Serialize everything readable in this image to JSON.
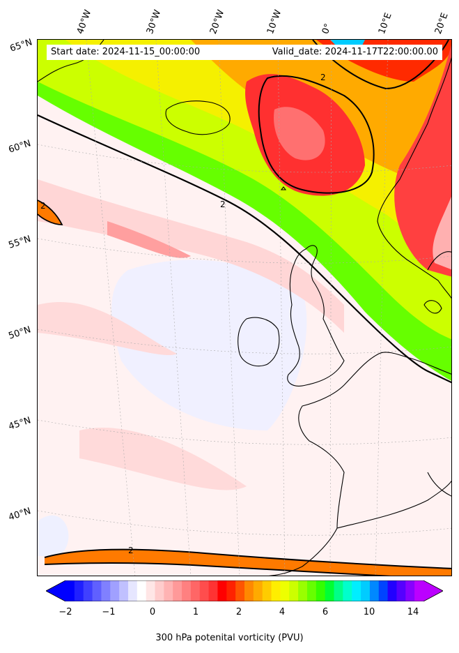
{
  "header": {
    "start_date": "Start date: 2024-11-15_00:00:00",
    "valid_date": "Valid_date: 2024-11-17T22:00:00.00"
  },
  "axes": {
    "longitude_labels": [
      "40°W",
      "30°W",
      "20°W",
      "10°W",
      "0°",
      "10°E",
      "20°E"
    ],
    "latitude_labels": [
      "65°N",
      "60°N",
      "55°N",
      "50°N",
      "45°N",
      "40°N"
    ]
  },
  "contours": {
    "label_value": "2",
    "line_color": "#000000"
  },
  "colorbar": {
    "title": "300 hPa potenital vorticity (PVU)",
    "ticks": [
      "−2",
      "−1",
      "0",
      "1",
      "2",
      "4",
      "6",
      "10",
      "14"
    ],
    "colors": [
      "#0000ff",
      "#2020ff",
      "#4040ff",
      "#6060ff",
      "#8080ff",
      "#a0a0ff",
      "#c0c0ff",
      "#e6e6ff",
      "#ffffff",
      "#ffe6e6",
      "#ffcccc",
      "#ffb3b3",
      "#ff9999",
      "#ff8080",
      "#ff6666",
      "#ff4d4d",
      "#ff3333",
      "#ff0000",
      "#ff2200",
      "#ff5500",
      "#ff8800",
      "#ffaa00",
      "#ffcc00",
      "#ffee00",
      "#eeff00",
      "#ccff00",
      "#99ff00",
      "#66ff00",
      "#33ff00",
      "#00ff33",
      "#00ff88",
      "#00ffcc",
      "#00eeff",
      "#00ccff",
      "#0088ff",
      "#0044ff",
      "#2200ff",
      "#5500ff",
      "#8800ff",
      "#bb00ff"
    ],
    "under_color": "#0000ff",
    "over_color": "#bb00ff"
  },
  "fields": {
    "background_low_pv": "#fff2f2",
    "very_low_pv": "#eef0ff",
    "mid_pv_pink": "#ffb8b8",
    "high_pv_red": "#ff3030",
    "orange": "#ff7a00",
    "yellow": "#f5f000",
    "green": "#66ff00",
    "land_outline": "#000000"
  }
}
